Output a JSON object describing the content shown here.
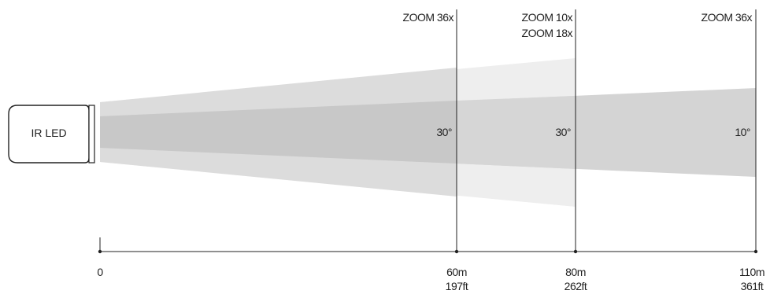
{
  "device": {
    "label": "IR LED"
  },
  "zoom_labels": {
    "z60": "ZOOM 36x",
    "z80a": "ZOOM 10x",
    "z80b": "ZOOM 18x",
    "z110": "ZOOM 36x"
  },
  "angles": {
    "a60": "30°",
    "a80": "30°",
    "a110": "10°"
  },
  "axis": {
    "ticks": [
      {
        "m": "0",
        "ft": ""
      },
      {
        "m": "60m",
        "ft": "197ft"
      },
      {
        "m": "80m",
        "ft": "262ft"
      },
      {
        "m": "110m",
        "ft": "361ft"
      }
    ]
  },
  "colors": {
    "beam_light": "#eeeeee",
    "beam_mid": "#d9d9d9",
    "beam_dark": "#c8c8c8",
    "line": "#222222"
  }
}
